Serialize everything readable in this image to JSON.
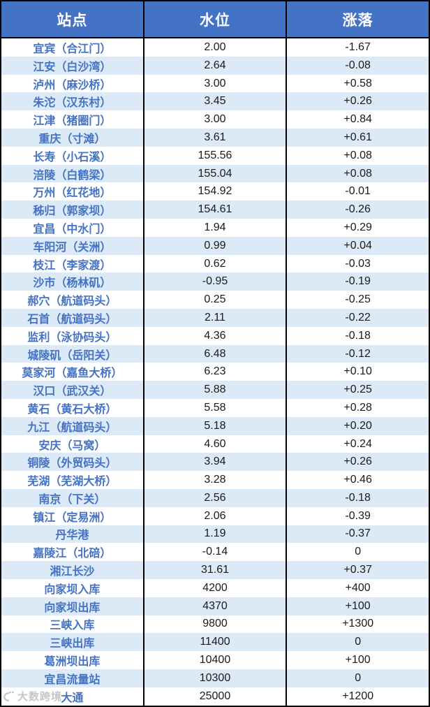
{
  "chart_data": {
    "type": "table",
    "title": "",
    "columns": [
      "站点",
      "水位",
      "涨落"
    ],
    "rows": [
      [
        "宜宾（合江门）",
        "2.00",
        "-1.67"
      ],
      [
        "江安（白沙湾）",
        "2.64",
        "-0.08"
      ],
      [
        "泸州（麻沙桥）",
        "3.00",
        "+0.58"
      ],
      [
        "朱沱（汉东村）",
        "3.45",
        "+0.26"
      ],
      [
        "江津（猪圈门）",
        "3.00",
        "+0.84"
      ],
      [
        "重庆（寸滩）",
        "3.61",
        "+0.61"
      ],
      [
        "长寿（小石溪）",
        "155.56",
        "+0.08"
      ],
      [
        "涪陵（白鹤梁）",
        "155.04",
        "+0.08"
      ],
      [
        "万州（红花地）",
        "154.92",
        "-0.01"
      ],
      [
        "秭归（郭家坝）",
        "154.61",
        "-0.26"
      ],
      [
        "宜昌（中水门）",
        "1.94",
        "+0.29"
      ],
      [
        "车阳河（关洲）",
        "0.99",
        "+0.04"
      ],
      [
        "枝江（李家渡）",
        "0.62",
        "-0.03"
      ],
      [
        "沙市（杨林矶）",
        "-0.95",
        "-0.19"
      ],
      [
        "郝穴（航道码头）",
        "0.25",
        "-0.25"
      ],
      [
        "石首（航道码头）",
        "2.11",
        "-0.22"
      ],
      [
        "监利（泳协码头）",
        "4.36",
        "-0.18"
      ],
      [
        "城陵矶（岳阳关）",
        "6.48",
        "-0.12"
      ],
      [
        "莫家河（嘉鱼大桥）",
        "6.23",
        "+0.10"
      ],
      [
        "汉口（武汉关）",
        "5.88",
        "+0.25"
      ],
      [
        "黄石（黄石大桥）",
        "5.58",
        "+0.28"
      ],
      [
        "九江（航道码头）",
        "5.18",
        "+0.20"
      ],
      [
        "安庆（马窝）",
        "4.60",
        "+0.24"
      ],
      [
        "铜陵（外贸码头）",
        "3.94",
        "+0.26"
      ],
      [
        "芜湖（芜湖大桥）",
        "3.28",
        "+0.46"
      ],
      [
        "南京（下关）",
        "2.56",
        "-0.18"
      ],
      [
        "镇江（定易洲）",
        "2.06",
        "-0.39"
      ],
      [
        "丹华港",
        "1.19",
        "-0.37"
      ],
      [
        "嘉陵江（北碚）",
        "-0.14",
        "0"
      ],
      [
        "湘江长沙",
        "31.61",
        "+0.37"
      ],
      [
        "向家坝入库",
        "4200",
        "+400"
      ],
      [
        "向家坝出库",
        "4370",
        "+100"
      ],
      [
        "三峡入库",
        "9800",
        "+1300"
      ],
      [
        "三峡出库",
        "11400",
        "0"
      ],
      [
        "葛洲坝出库",
        "10400",
        "+100"
      ],
      [
        "宜昌流量站",
        "10300",
        "0"
      ],
      [
        "大通",
        "25000",
        "+1200"
      ]
    ],
    "layout_hints": {
      "striped_rows": true,
      "stripe_pattern": "odd rows white, even rows light blue",
      "column_alignment": "center"
    }
  },
  "watermark": {
    "text": "大数跨境"
  },
  "colors": {
    "header_bg": "#4472C4",
    "header_text": "#FFFFFF",
    "stripe_bg": "#DCE9F6",
    "station_text": "#4472C4",
    "value_text": "#1A1A1A",
    "border": "#000000",
    "watermark_text": "#9EA3AA"
  }
}
